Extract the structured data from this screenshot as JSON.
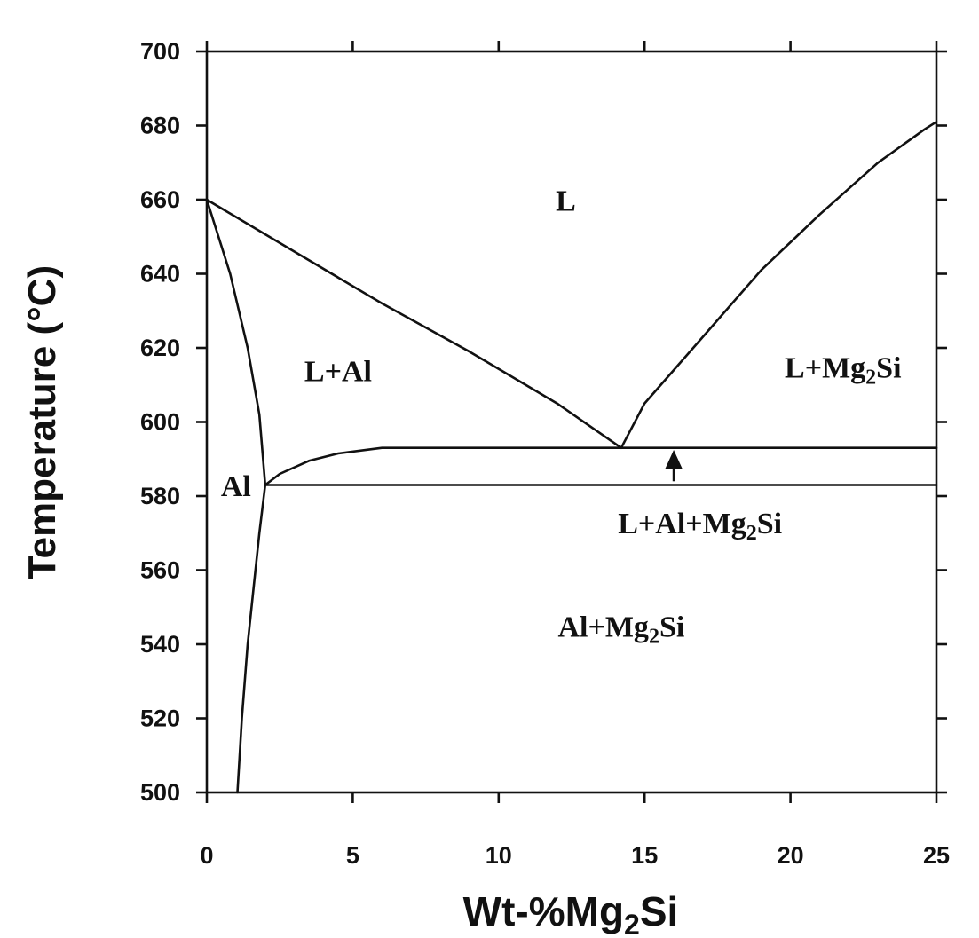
{
  "chart_data": {
    "type": "line",
    "title": "",
    "xlabel": "Wt-%Mg",
    "xlabel_sub": "2",
    "xlabel_tail": "Si",
    "ylabel": "Temperature (°C)",
    "xlim": [
      0,
      25
    ],
    "ylim": [
      500,
      700
    ],
    "x_ticks": [
      0,
      5,
      10,
      15,
      20,
      25
    ],
    "y_ticks": [
      500,
      520,
      540,
      560,
      580,
      600,
      620,
      640,
      660,
      680,
      700
    ],
    "grid": false,
    "series": [
      {
        "x": [
          0,
          0.8,
          1.4,
          1.8,
          2.0
        ],
        "y": [
          660,
          640,
          620,
          602,
          583
        ]
      },
      {
        "x": [
          2.0,
          1.8,
          1.6,
          1.4,
          1.2,
          1.05
        ],
        "y": [
          583,
          570,
          555,
          540,
          520,
          500
        ]
      },
      {
        "x": [
          0,
          3,
          6,
          9,
          12,
          14.2
        ],
        "y": [
          660,
          646,
          632,
          619,
          605,
          593
        ]
      },
      {
        "x": [
          14.2,
          15,
          17,
          19,
          21,
          23,
          24.6,
          25
        ],
        "y": [
          593,
          605,
          623,
          641,
          656,
          670,
          679,
          681
        ]
      },
      {
        "x": [
          2.0,
          2.5,
          3.5,
          4.5,
          6,
          10,
          15,
          20,
          25
        ],
        "y": [
          583,
          586,
          589.5,
          591.5,
          593,
          593,
          593,
          593,
          593
        ]
      },
      {
        "x": [
          2.0,
          25
        ],
        "y": [
          583,
          583
        ]
      }
    ],
    "regions": [
      {
        "name": "L",
        "x": 12.3,
        "y": 657
      },
      {
        "name": "L+Al",
        "x": 4.5,
        "y": 611
      },
      {
        "name": "L+Mg",
        "sub": "2",
        "tail": "Si",
        "x": 21.8,
        "y": 612
      },
      {
        "name": "Al",
        "x": 1.0,
        "y": 580
      },
      {
        "name": "L+Al+Mg",
        "sub": "2",
        "tail": "Si",
        "x": 16.9,
        "y": 570
      },
      {
        "name": "Al+Mg",
        "sub": "2",
        "tail": "Si",
        "x": 14.2,
        "y": 542
      }
    ],
    "annotations": [
      {
        "type": "arrow",
        "x": 16.0,
        "y_from": 584,
        "y_to": 591.5
      }
    ]
  }
}
